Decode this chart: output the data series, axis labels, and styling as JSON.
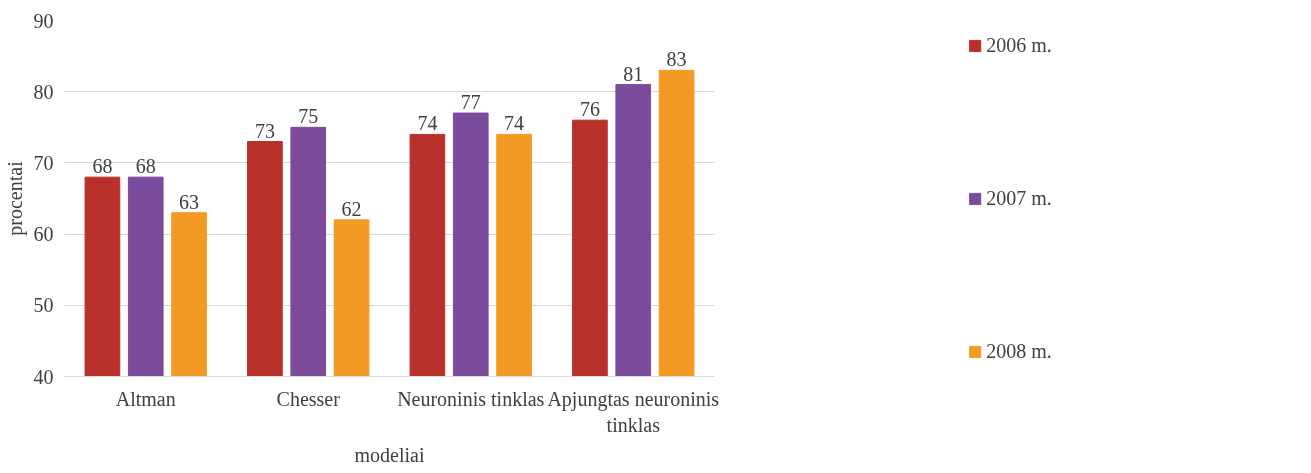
{
  "chart_data": {
    "type": "bar",
    "xlabel": "modeliai",
    "ylabel": "procentai",
    "categories": [
      "Altman",
      "Chesser",
      "Neuroninis tinklas",
      "Apjungtas neuroninis tinklas"
    ],
    "series": [
      {
        "name": "2006 m.",
        "color": "#b8302c",
        "values": [
          68,
          73,
          74,
          76
        ]
      },
      {
        "name": "2007 m.",
        "color": "#7b4b9c",
        "values": [
          68,
          75,
          77,
          81
        ]
      },
      {
        "name": "2008 m.",
        "color": "#f39a24",
        "values": [
          63,
          62,
          74,
          83
        ]
      }
    ],
    "ylim": [
      40,
      90
    ],
    "yticks": [
      40,
      50,
      60,
      70,
      80,
      90
    ],
    "grid": "y",
    "legend": "right",
    "data_labels": true
  }
}
